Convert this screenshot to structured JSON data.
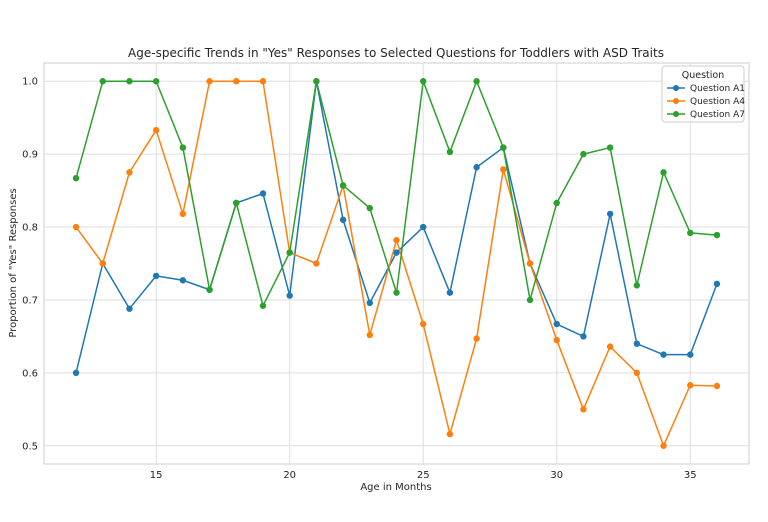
{
  "chart_data": {
    "type": "line",
    "title": "Age-specific Trends in \"Yes\" Responses to Selected Questions for Toddlers with ASD Traits",
    "xlabel": "Age in Months",
    "ylabel": "Proportion of \"Yes\" Responses",
    "xlim": [
      10.8,
      37.2
    ],
    "ylim": [
      0.475,
      1.025
    ],
    "xticks": [
      15,
      20,
      25,
      30,
      35
    ],
    "yticks": [
      0.5,
      0.6,
      0.7,
      0.8,
      0.9,
      1.0
    ],
    "ytick_labels": [
      "0.5",
      "0.6",
      "0.7",
      "0.8",
      "0.9",
      "1.0"
    ],
    "grid": true,
    "legend": {
      "title": "Question",
      "placement": "top-right"
    },
    "x": [
      12,
      13,
      14,
      15,
      16,
      17,
      18,
      19,
      20,
      21,
      22,
      23,
      24,
      25,
      26,
      27,
      28,
      29,
      30,
      31,
      32,
      33,
      34,
      35,
      36
    ],
    "series": [
      {
        "name": "Question A1",
        "color": "#1f77b4",
        "values": [
          0.6,
          0.75,
          0.688,
          0.733,
          0.727,
          0.714,
          0.833,
          0.846,
          0.706,
          1.0,
          0.81,
          0.696,
          0.765,
          0.8,
          0.71,
          0.882,
          0.909,
          0.75,
          0.667,
          0.65,
          0.818,
          0.64,
          0.625,
          0.625,
          0.722
        ]
      },
      {
        "name": "Question A4",
        "color": "#ff7f0e",
        "values": [
          0.8,
          0.75,
          0.875,
          0.933,
          0.818,
          1.0,
          1.0,
          1.0,
          0.765,
          0.75,
          0.857,
          0.652,
          0.782,
          0.667,
          0.516,
          0.647,
          0.879,
          0.75,
          0.645,
          0.55,
          0.636,
          0.6,
          0.5,
          0.583,
          0.582
        ]
      },
      {
        "name": "Question A7",
        "color": "#2ca02c",
        "values": [
          0.867,
          1.0,
          1.0,
          1.0,
          0.909,
          0.714,
          0.833,
          0.692,
          0.765,
          1.0,
          0.857,
          0.826,
          0.71,
          1.0,
          0.903,
          1.0,
          0.909,
          0.7,
          0.833,
          0.9,
          0.909,
          0.72,
          0.875,
          0.792,
          0.789
        ]
      }
    ]
  }
}
